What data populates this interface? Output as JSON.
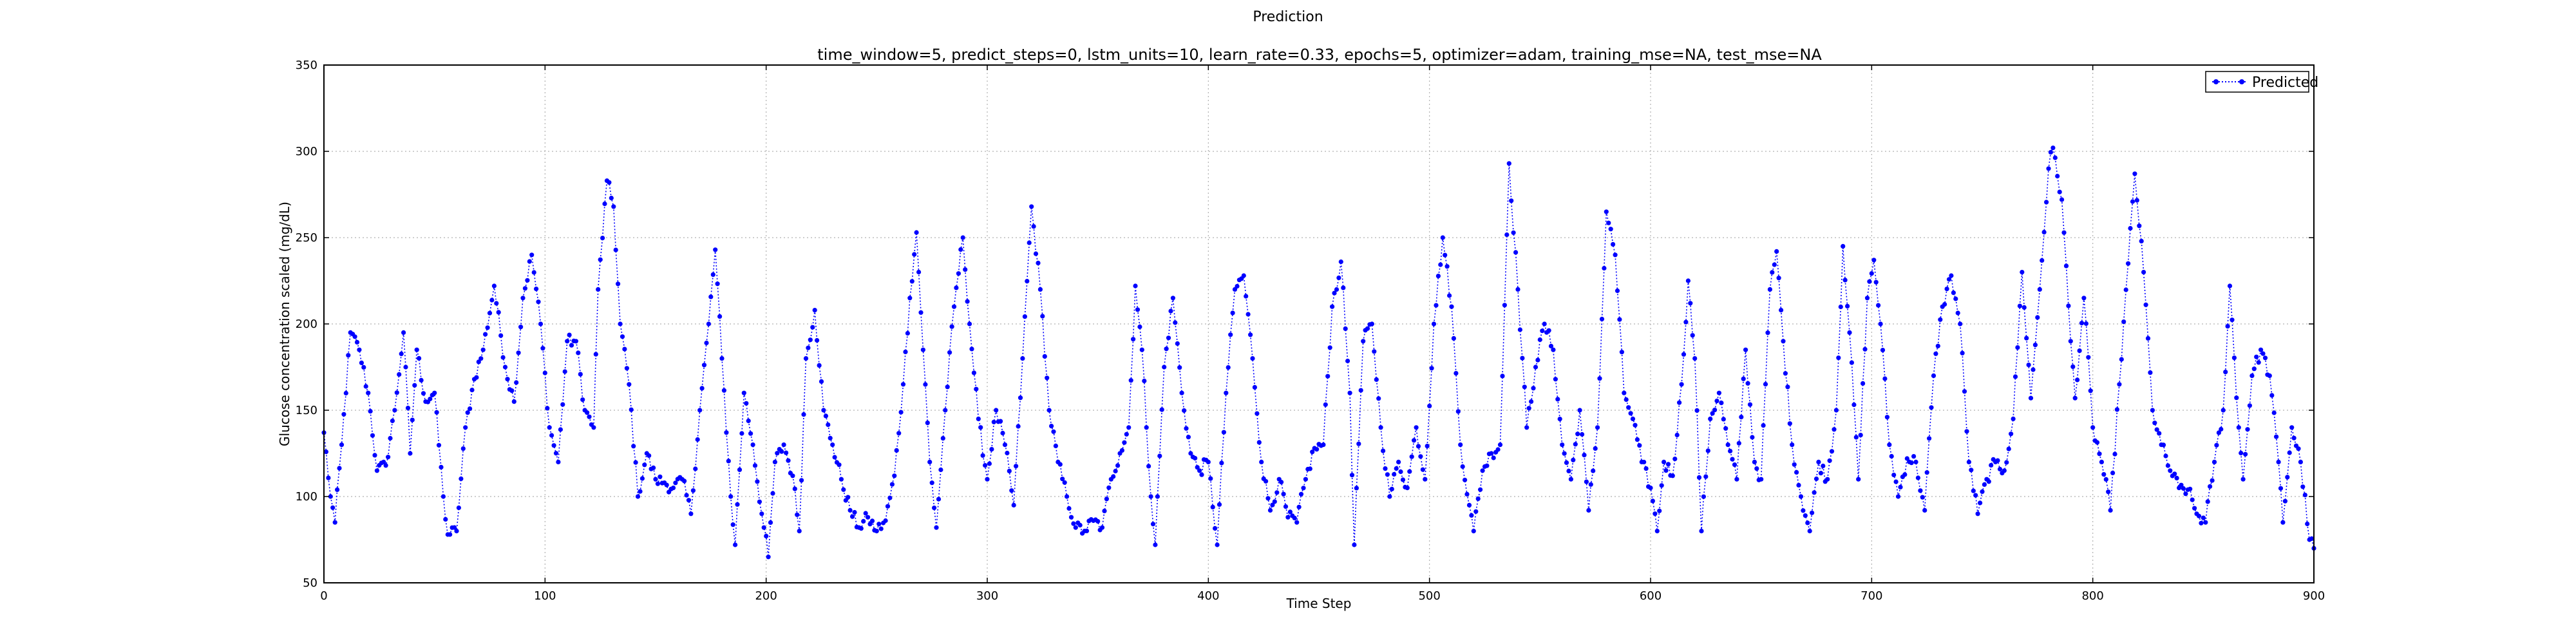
{
  "chart_data": {
    "type": "line",
    "suptitle": "Prediction",
    "title": "time_window=5, predict_steps=0, lstm_units=10, learn_rate=0.33, epochs=5, optimizer=adam, training_mse=NA, test_mse=NA",
    "xlabel": "Time Step",
    "ylabel": "Glucose concentration scaled (mg/dL)",
    "xlim": [
      0,
      900
    ],
    "ylim": [
      50,
      350
    ],
    "xticks": [
      0,
      100,
      200,
      300,
      400,
      500,
      600,
      700,
      800,
      900
    ],
    "yticks": [
      50,
      100,
      150,
      200,
      250,
      300,
      350
    ],
    "grid": true,
    "legend_position": "top-right",
    "line_style": "dotted",
    "marker": "circle",
    "series_color": "#0000ff",
    "series": [
      {
        "name": "Predicted",
        "anchors": [
          [
            0,
            137
          ],
          [
            3,
            100
          ],
          [
            5,
            85
          ],
          [
            8,
            130
          ],
          [
            12,
            195
          ],
          [
            16,
            185
          ],
          [
            20,
            160
          ],
          [
            24,
            115
          ],
          [
            28,
            118
          ],
          [
            32,
            150
          ],
          [
            36,
            195
          ],
          [
            39,
            125
          ],
          [
            42,
            185
          ],
          [
            46,
            155
          ],
          [
            50,
            160
          ],
          [
            54,
            100
          ],
          [
            56,
            78
          ],
          [
            60,
            80
          ],
          [
            64,
            140
          ],
          [
            68,
            168
          ],
          [
            72,
            185
          ],
          [
            77,
            222
          ],
          [
            82,
            175
          ],
          [
            86,
            155
          ],
          [
            90,
            215
          ],
          [
            94,
            240
          ],
          [
            98,
            200
          ],
          [
            102,
            140
          ],
          [
            106,
            120
          ],
          [
            110,
            190
          ],
          [
            114,
            190
          ],
          [
            118,
            150
          ],
          [
            122,
            140
          ],
          [
            124,
            220
          ],
          [
            128,
            283
          ],
          [
            131,
            268
          ],
          [
            134,
            200
          ],
          [
            138,
            165
          ],
          [
            142,
            100
          ],
          [
            146,
            125
          ],
          [
            150,
            110
          ],
          [
            154,
            108
          ],
          [
            158,
            105
          ],
          [
            162,
            110
          ],
          [
            166,
            90
          ],
          [
            170,
            150
          ],
          [
            174,
            200
          ],
          [
            177,
            243
          ],
          [
            180,
            180
          ],
          [
            184,
            100
          ],
          [
            186,
            72
          ],
          [
            190,
            160
          ],
          [
            194,
            130
          ],
          [
            198,
            90
          ],
          [
            201,
            65
          ],
          [
            204,
            120
          ],
          [
            208,
            130
          ],
          [
            212,
            112
          ],
          [
            215,
            80
          ],
          [
            218,
            180
          ],
          [
            222,
            208
          ],
          [
            226,
            150
          ],
          [
            230,
            130
          ],
          [
            234,
            110
          ],
          [
            238,
            92
          ],
          [
            242,
            82
          ],
          [
            246,
            88
          ],
          [
            250,
            80
          ],
          [
            254,
            86
          ],
          [
            258,
            112
          ],
          [
            262,
            165
          ],
          [
            265,
            215
          ],
          [
            268,
            253
          ],
          [
            271,
            185
          ],
          [
            274,
            120
          ],
          [
            277,
            82
          ],
          [
            281,
            150
          ],
          [
            285,
            210
          ],
          [
            289,
            250
          ],
          [
            292,
            200
          ],
          [
            296,
            145
          ],
          [
            300,
            110
          ],
          [
            304,
            150
          ],
          [
            308,
            130
          ],
          [
            312,
            95
          ],
          [
            316,
            180
          ],
          [
            320,
            268
          ],
          [
            324,
            220
          ],
          [
            328,
            150
          ],
          [
            332,
            120
          ],
          [
            336,
            100
          ],
          [
            340,
            82
          ],
          [
            344,
            80
          ],
          [
            348,
            86
          ],
          [
            352,
            82
          ],
          [
            356,
            110
          ],
          [
            360,
            125
          ],
          [
            364,
            140
          ],
          [
            367,
            222
          ],
          [
            370,
            185
          ],
          [
            374,
            100
          ],
          [
            376,
            72
          ],
          [
            380,
            175
          ],
          [
            384,
            215
          ],
          [
            388,
            160
          ],
          [
            392,
            125
          ],
          [
            396,
            115
          ],
          [
            400,
            120
          ],
          [
            404,
            72
          ],
          [
            408,
            160
          ],
          [
            412,
            220
          ],
          [
            416,
            228
          ],
          [
            420,
            180
          ],
          [
            424,
            120
          ],
          [
            428,
            92
          ],
          [
            432,
            110
          ],
          [
            436,
            88
          ],
          [
            440,
            85
          ],
          [
            444,
            110
          ],
          [
            448,
            128
          ],
          [
            452,
            130
          ],
          [
            456,
            210
          ],
          [
            460,
            236
          ],
          [
            464,
            160
          ],
          [
            466,
            72
          ],
          [
            470,
            190
          ],
          [
            474,
            200
          ],
          [
            478,
            140
          ],
          [
            482,
            100
          ],
          [
            486,
            120
          ],
          [
            490,
            105
          ],
          [
            494,
            140
          ],
          [
            498,
            110
          ],
          [
            502,
            200
          ],
          [
            506,
            250
          ],
          [
            510,
            210
          ],
          [
            514,
            130
          ],
          [
            518,
            95
          ],
          [
            520,
            80
          ],
          [
            524,
            115
          ],
          [
            528,
            125
          ],
          [
            532,
            130
          ],
          [
            536,
            293
          ],
          [
            540,
            220
          ],
          [
            544,
            140
          ],
          [
            548,
            175
          ],
          [
            552,
            200
          ],
          [
            556,
            185
          ],
          [
            560,
            130
          ],
          [
            564,
            110
          ],
          [
            568,
            150
          ],
          [
            572,
            92
          ],
          [
            576,
            140
          ],
          [
            580,
            265
          ],
          [
            584,
            240
          ],
          [
            588,
            160
          ],
          [
            592,
            145
          ],
          [
            596,
            120
          ],
          [
            600,
            105
          ],
          [
            603,
            80
          ],
          [
            606,
            120
          ],
          [
            610,
            112
          ],
          [
            614,
            165
          ],
          [
            617,
            225
          ],
          [
            620,
            180
          ],
          [
            623,
            80
          ],
          [
            627,
            145
          ],
          [
            631,
            160
          ],
          [
            635,
            130
          ],
          [
            639,
            110
          ],
          [
            643,
            185
          ],
          [
            647,
            120
          ],
          [
            650,
            110
          ],
          [
            654,
            220
          ],
          [
            657,
            242
          ],
          [
            660,
            190
          ],
          [
            664,
            130
          ],
          [
            668,
            100
          ],
          [
            672,
            80
          ],
          [
            676,
            120
          ],
          [
            680,
            110
          ],
          [
            684,
            150
          ],
          [
            687,
            245
          ],
          [
            690,
            195
          ],
          [
            694,
            110
          ],
          [
            698,
            215
          ],
          [
            701,
            237
          ],
          [
            704,
            200
          ],
          [
            708,
            130
          ],
          [
            712,
            100
          ],
          [
            716,
            122
          ],
          [
            720,
            120
          ],
          [
            724,
            92
          ],
          [
            728,
            170
          ],
          [
            732,
            210
          ],
          [
            736,
            228
          ],
          [
            740,
            200
          ],
          [
            744,
            120
          ],
          [
            748,
            90
          ],
          [
            752,
            110
          ],
          [
            756,
            120
          ],
          [
            760,
            115
          ],
          [
            764,
            145
          ],
          [
            768,
            230
          ],
          [
            772,
            157
          ],
          [
            776,
            220
          ],
          [
            780,
            290
          ],
          [
            782,
            302
          ],
          [
            786,
            272
          ],
          [
            790,
            190
          ],
          [
            792,
            157
          ],
          [
            796,
            215
          ],
          [
            800,
            140
          ],
          [
            804,
            120
          ],
          [
            808,
            92
          ],
          [
            812,
            165
          ],
          [
            816,
            235
          ],
          [
            819,
            287
          ],
          [
            823,
            230
          ],
          [
            827,
            150
          ],
          [
            831,
            130
          ],
          [
            835,
            115
          ],
          [
            839,
            105
          ],
          [
            843,
            104
          ],
          [
            847,
            90
          ],
          [
            851,
            85
          ],
          [
            855,
            120
          ],
          [
            859,
            150
          ],
          [
            862,
            222
          ],
          [
            866,
            140
          ],
          [
            868,
            110
          ],
          [
            872,
            170
          ],
          [
            876,
            185
          ],
          [
            880,
            170
          ],
          [
            884,
            120
          ],
          [
            886,
            85
          ],
          [
            890,
            140
          ],
          [
            894,
            120
          ],
          [
            898,
            75
          ],
          [
            900,
            70
          ]
        ]
      }
    ]
  }
}
